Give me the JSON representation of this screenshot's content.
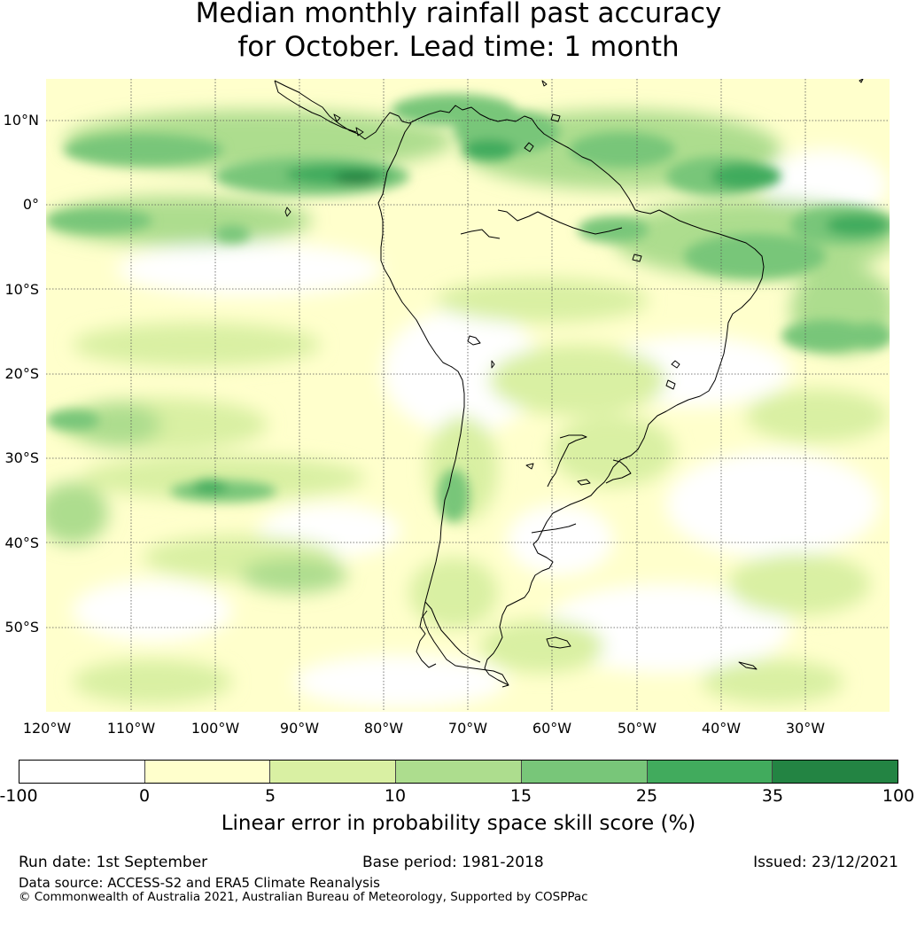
{
  "title": {
    "line1": "Median monthly rainfall past accuracy",
    "line2": "for October. Lead time: 1 month"
  },
  "map": {
    "lat_labels": [
      "10°N",
      "0°",
      "10°S",
      "20°S",
      "30°S",
      "40°S",
      "50°S"
    ],
    "lon_labels": [
      "120°W",
      "110°W",
      "100°W",
      "90°W",
      "80°W",
      "70°W",
      "60°W",
      "50°W",
      "40°W",
      "30°W"
    ]
  },
  "colorbar": {
    "ticks": [
      "-100",
      "0",
      "5",
      "10",
      "15",
      "25",
      "35",
      "100"
    ],
    "colors": [
      "#ffffff",
      "#ffffcc",
      "#d9f0a3",
      "#addd8e",
      "#78c679",
      "#41ab5d",
      "#238443"
    ],
    "label": "Linear error in probability space skill score (%)"
  },
  "footer": {
    "run_date": "Run date: 1st September",
    "base_period": "Base period: 1981-2018",
    "issued": "Issued: 23/12/2021",
    "data_source": "Data source: ACCESS-S2 and ERA5 Climate Reanalysis",
    "copyright": "© Commonwealth of Australia 2021, Australian Bureau of Meteorology, Supported by COSPPac"
  }
}
